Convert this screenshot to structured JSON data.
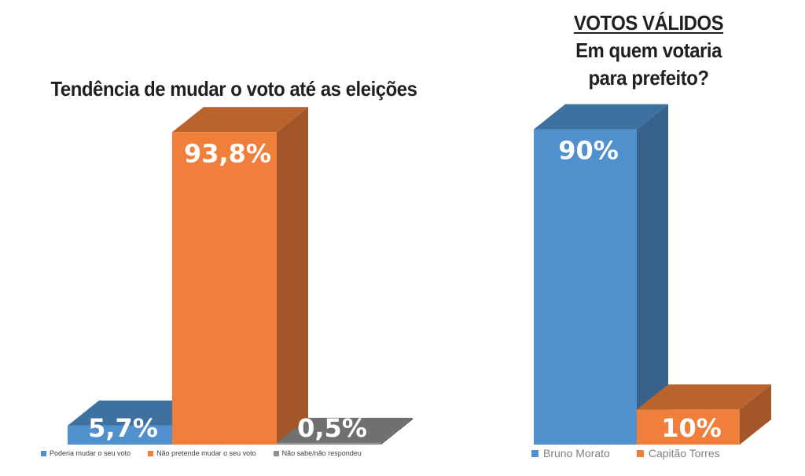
{
  "chart_data": [
    {
      "type": "bar",
      "title": "Tendência de mudar o voto até as eleições",
      "categories": [
        "Poderia mudar o seu voto",
        "Não pretende mudar o seu voto",
        "Não sabe/não respondeu"
      ],
      "values": [
        5.7,
        93.8,
        0.5
      ],
      "value_labels": [
        "5,7%",
        "93,8%",
        "0,5%"
      ],
      "colors": [
        "#4f90cd",
        "#ef7f3a",
        "#8f8f8f"
      ],
      "ylim": [
        0,
        100
      ],
      "grid": false,
      "legend": "bottom"
    },
    {
      "type": "bar",
      "title_lines": [
        "VOTOS VÁLIDOS",
        "Em quem votaria",
        "para prefeito?"
      ],
      "categories": [
        "Bruno Morato",
        "Capitão Torres"
      ],
      "values": [
        90,
        10
      ],
      "value_labels": [
        "90%",
        "10%"
      ],
      "colors": [
        "#4f90cd",
        "#ef7f3a"
      ],
      "ylim": [
        0,
        100
      ],
      "grid": false,
      "legend": "bottom"
    }
  ]
}
